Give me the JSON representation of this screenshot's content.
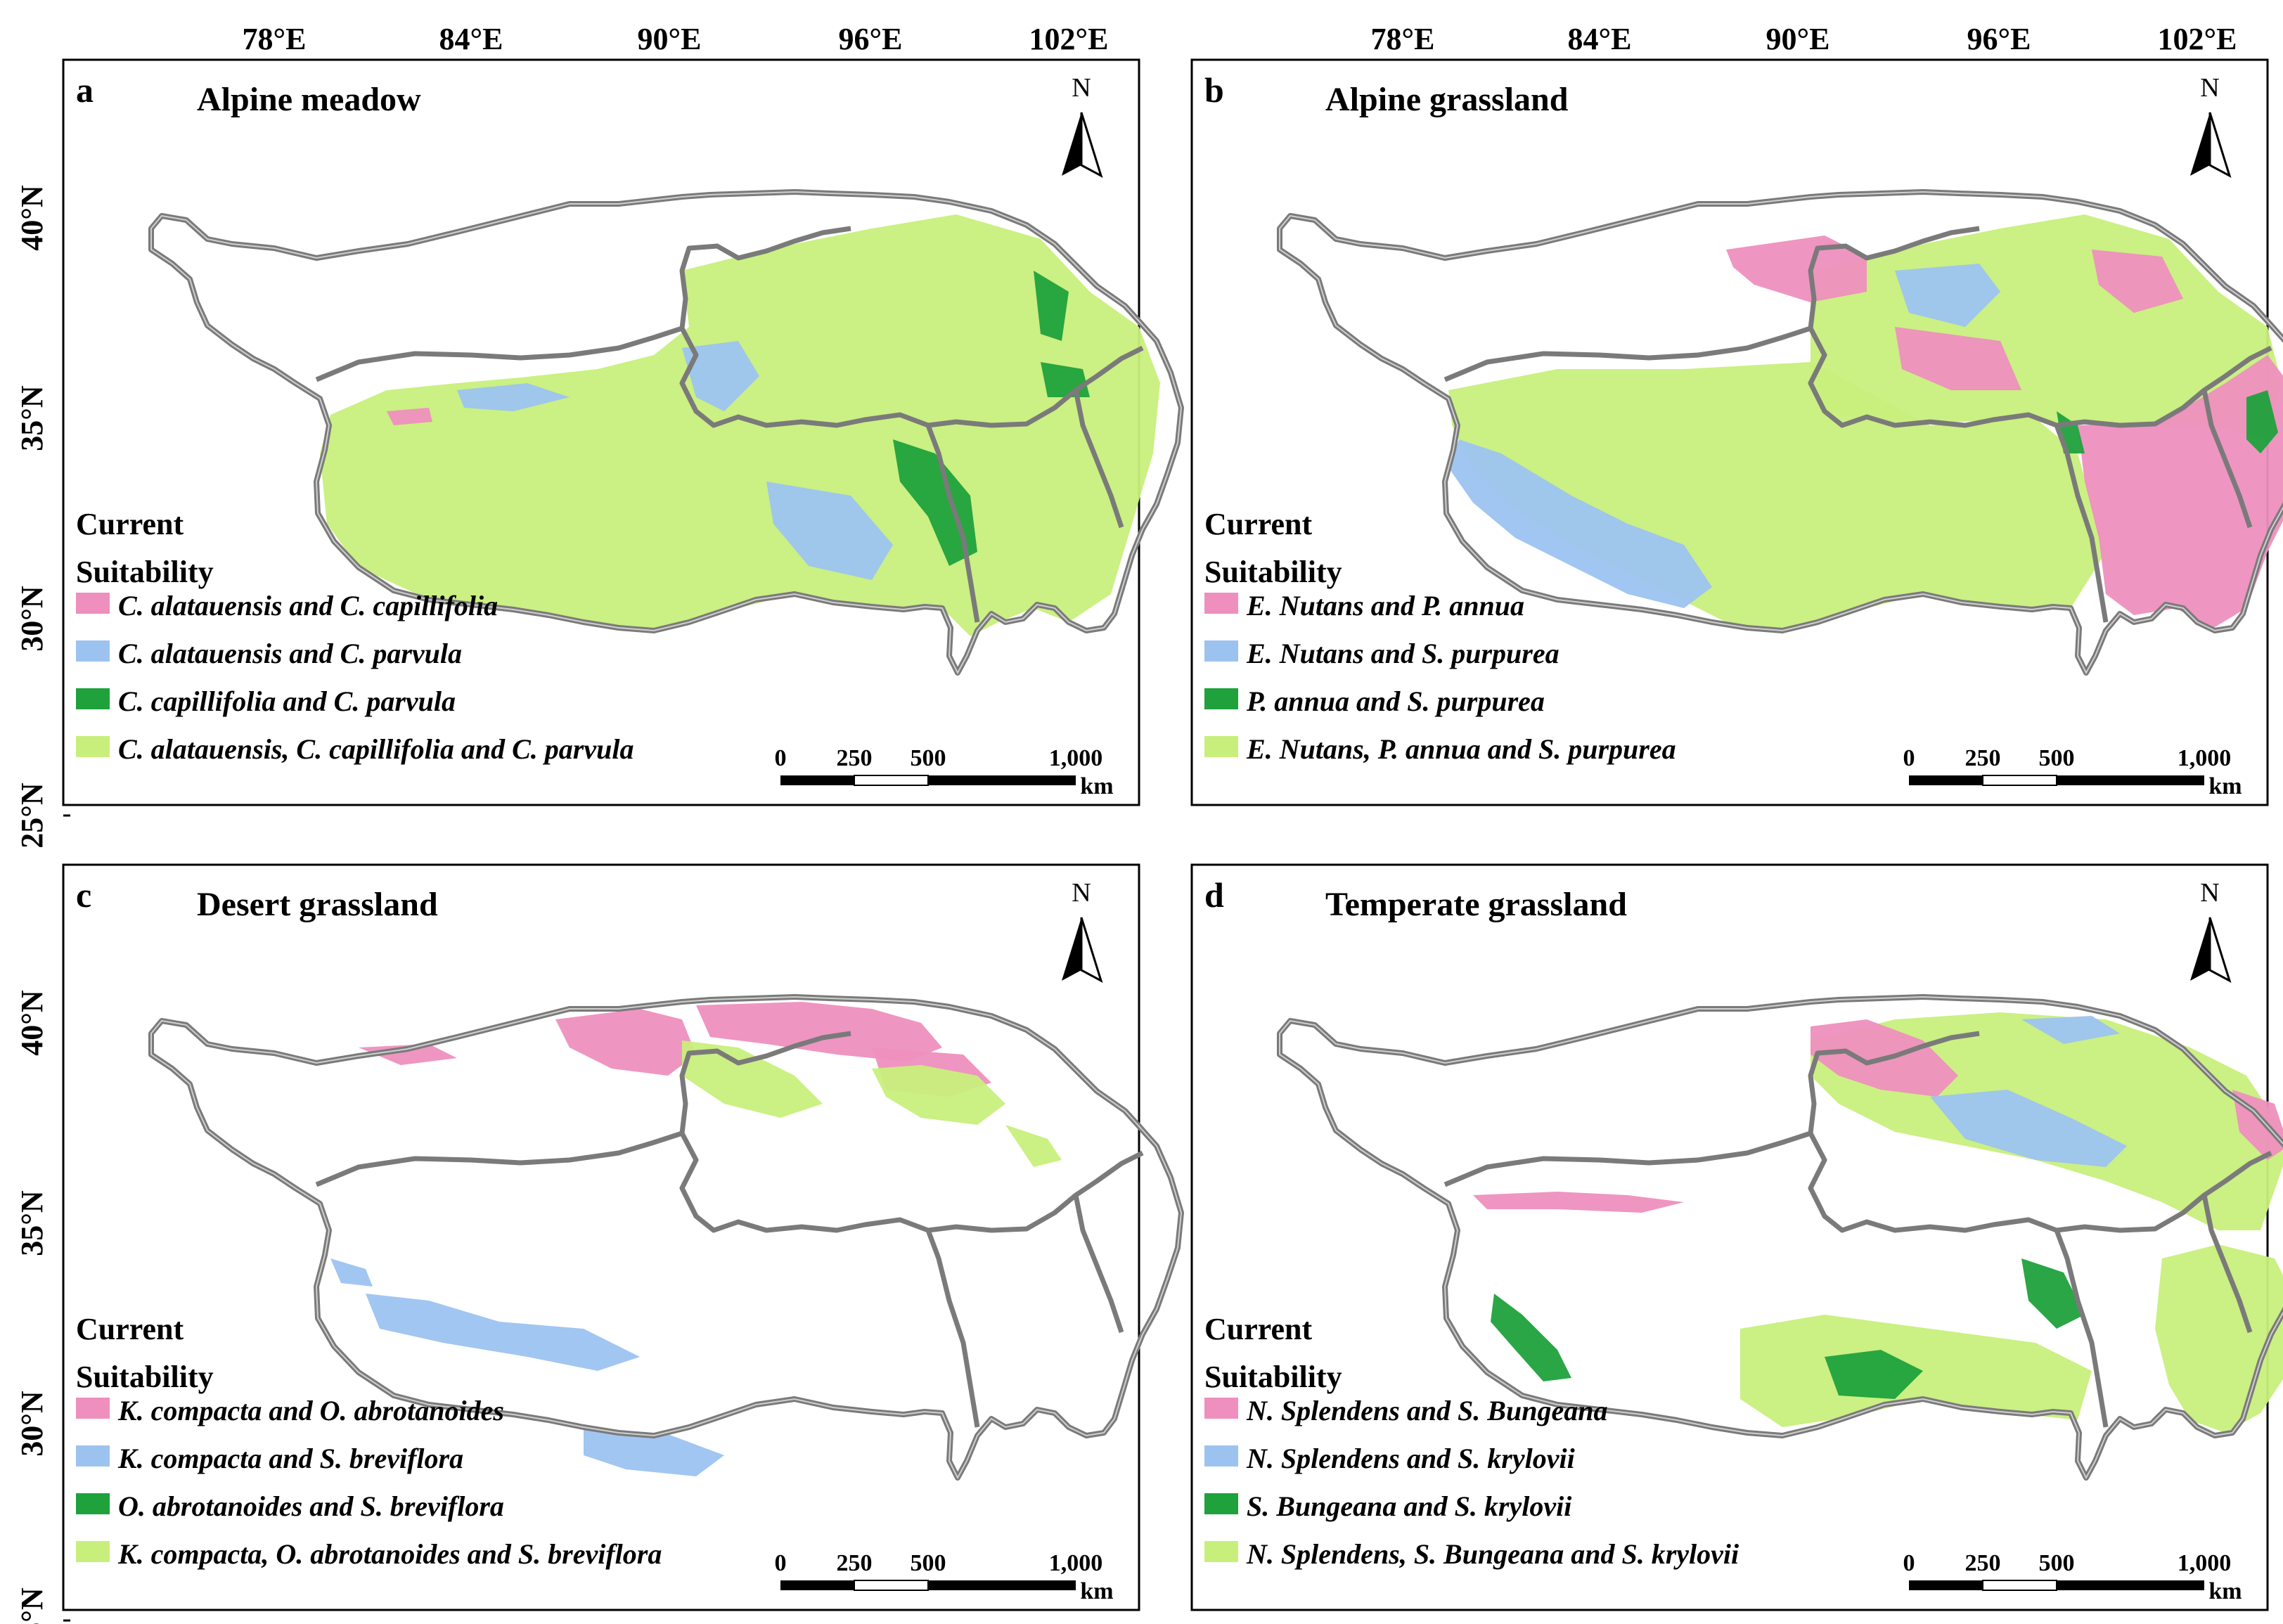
{
  "top_ticks": [
    "78°E",
    "84°E",
    "90°E",
    "96°E",
    "102°E"
  ],
  "left_ticks": [
    "40°N",
    "35°N",
    "30°N",
    "25°N"
  ],
  "legend_heading": [
    "Current",
    "Suitability"
  ],
  "north_label": "N",
  "scale_labels": [
    "0",
    "250",
    "500",
    "1,000"
  ],
  "scale_unit": "km",
  "colors": {
    "pink": "#ee8fbe",
    "blue": "#9cc3f0",
    "dark_green": "#1fa13c",
    "light_green": "#c8ef7c",
    "border": "#7a7a7a"
  },
  "panels": [
    {
      "label": "a",
      "title": "Alpine meadow",
      "legend": [
        {
          "text": "C. alatauensis and C. capillifolia",
          "color": "#ee8fbe"
        },
        {
          "text": "C. alatauensis and C. parvula",
          "color": "#9cc3f0"
        },
        {
          "text": "C. capillifolia and C. parvula",
          "color": "#1fa13c"
        },
        {
          "text": "C. alatauensis, C. capillifolia and C. parvula",
          "color": "#c8ef7c"
        }
      ]
    },
    {
      "label": "b",
      "title": "Alpine grassland",
      "legend": [
        {
          "text": "E. Nutans and P. annua",
          "color": "#ee8fbe"
        },
        {
          "text": "E. Nutans and S. purpurea",
          "color": "#9cc3f0"
        },
        {
          "text": "P. annua and S. purpurea",
          "color": "#1fa13c"
        },
        {
          "text": "E. Nutans, P. annua and S. purpurea",
          "color": "#c8ef7c"
        }
      ]
    },
    {
      "label": "c",
      "title": "Desert grassland",
      "legend": [
        {
          "text": "K. compacta and O. abrotanoides",
          "color": "#ee8fbe"
        },
        {
          "text": "K. compacta and S. breviflora",
          "color": "#9cc3f0"
        },
        {
          "text": "O. abrotanoides and S. breviflora",
          "color": "#1fa13c"
        },
        {
          "text": "K. compacta, O. abrotanoides and S. breviflora",
          "color": "#c8ef7c"
        }
      ]
    },
    {
      "label": "d",
      "title": "Temperate grassland",
      "legend": [
        {
          "text": "N. Splendens and S. Bungeana",
          "color": "#ee8fbe"
        },
        {
          "text": "N. Splendens and S. krylovii",
          "color": "#9cc3f0"
        },
        {
          "text": "S. Bungeana and S. krylovii",
          "color": "#1fa13c"
        },
        {
          "text": "N. Splendens, S. Bungeana and S. krylovii",
          "color": "#c8ef7c"
        }
      ]
    }
  ]
}
